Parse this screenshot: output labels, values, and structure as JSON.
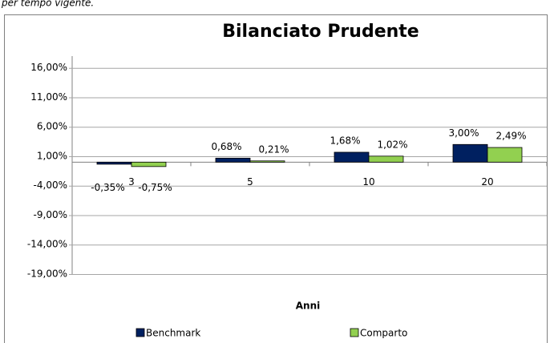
{
  "caption": "per tempo vigente.",
  "chart_data": {
    "type": "bar",
    "title": "Bilanciato Prudente",
    "x_label": "Anni",
    "categories": [
      "3",
      "5",
      "10",
      "20"
    ],
    "series": [
      {
        "name": "Benchmark",
        "color": "#002060",
        "values": [
          -0.35,
          0.68,
          1.68,
          3.0
        ],
        "value_labels": [
          "-0,35%",
          "0,68%",
          "1,68%",
          "3,00%"
        ]
      },
      {
        "name": "Comparto",
        "color": "#92d050",
        "values": [
          -0.75,
          0.21,
          1.02,
          2.49
        ],
        "value_labels": [
          "-0,75%",
          "0,21%",
          "1,02%",
          "2,49%"
        ]
      }
    ],
    "ylim": [
      -19,
      18
    ],
    "yticks": [
      {
        "value": 16,
        "label": "16,00%"
      },
      {
        "value": 11,
        "label": "11,00%"
      },
      {
        "value": 6,
        "label": "6,00%"
      },
      {
        "value": 1,
        "label": "1,00%"
      },
      {
        "value": -4,
        "label": "-4,00%"
      },
      {
        "value": -9,
        "label": "-9,00%"
      },
      {
        "value": -14,
        "label": "-14,00%"
      },
      {
        "value": -19,
        "label": "-19,00%"
      }
    ],
    "grid": true,
    "legend": "bottom"
  }
}
